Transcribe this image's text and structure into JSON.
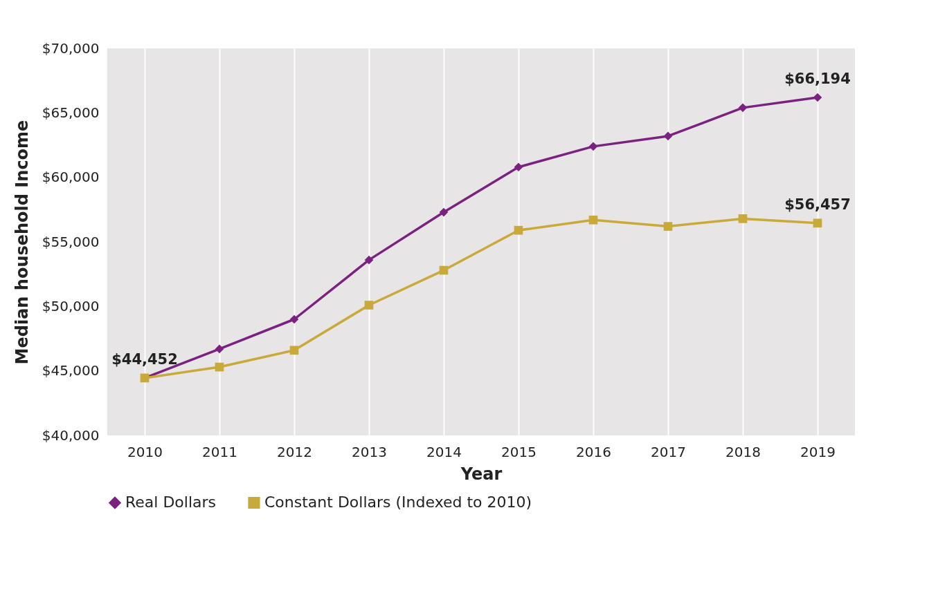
{
  "chart_data": {
    "type": "line",
    "xlabel": "Year",
    "ylabel": "Median household  Income",
    "categories": [
      "2010",
      "2011",
      "2012",
      "2013",
      "2014",
      "2015",
      "2016",
      "2017",
      "2018",
      "2019"
    ],
    "series": [
      {
        "name": "Real Dollars",
        "color": "#7b2180",
        "marker": "diamond",
        "values": [
          44452,
          46700,
          49000,
          53600,
          57300,
          60800,
          62400,
          63200,
          65400,
          66194
        ],
        "value_labels": [
          "$44,452",
          null,
          null,
          null,
          null,
          null,
          null,
          null,
          null,
          "$66,194"
        ]
      },
      {
        "name": "Constant Dollars (Indexed to 2010)",
        "color": "#c9a93a",
        "marker": "square",
        "values": [
          44452,
          45300,
          46600,
          50100,
          52800,
          55900,
          56700,
          56200,
          56800,
          56457
        ],
        "value_labels": [
          null,
          null,
          null,
          null,
          null,
          null,
          null,
          null,
          null,
          "$56,457"
        ]
      }
    ],
    "ylim": [
      40000,
      70000
    ],
    "yticks": [
      {
        "value": 40000,
        "label": "$40,000"
      },
      {
        "value": 45000,
        "label": "$45,000"
      },
      {
        "value": 50000,
        "label": "$50,000"
      },
      {
        "value": 55000,
        "label": "$55,000"
      },
      {
        "value": 60000,
        "label": "$60,000"
      },
      {
        "value": 65000,
        "label": "$65,000"
      },
      {
        "value": 70000,
        "label": "$70,000"
      }
    ],
    "grid": "x",
    "legend": "bottom"
  }
}
